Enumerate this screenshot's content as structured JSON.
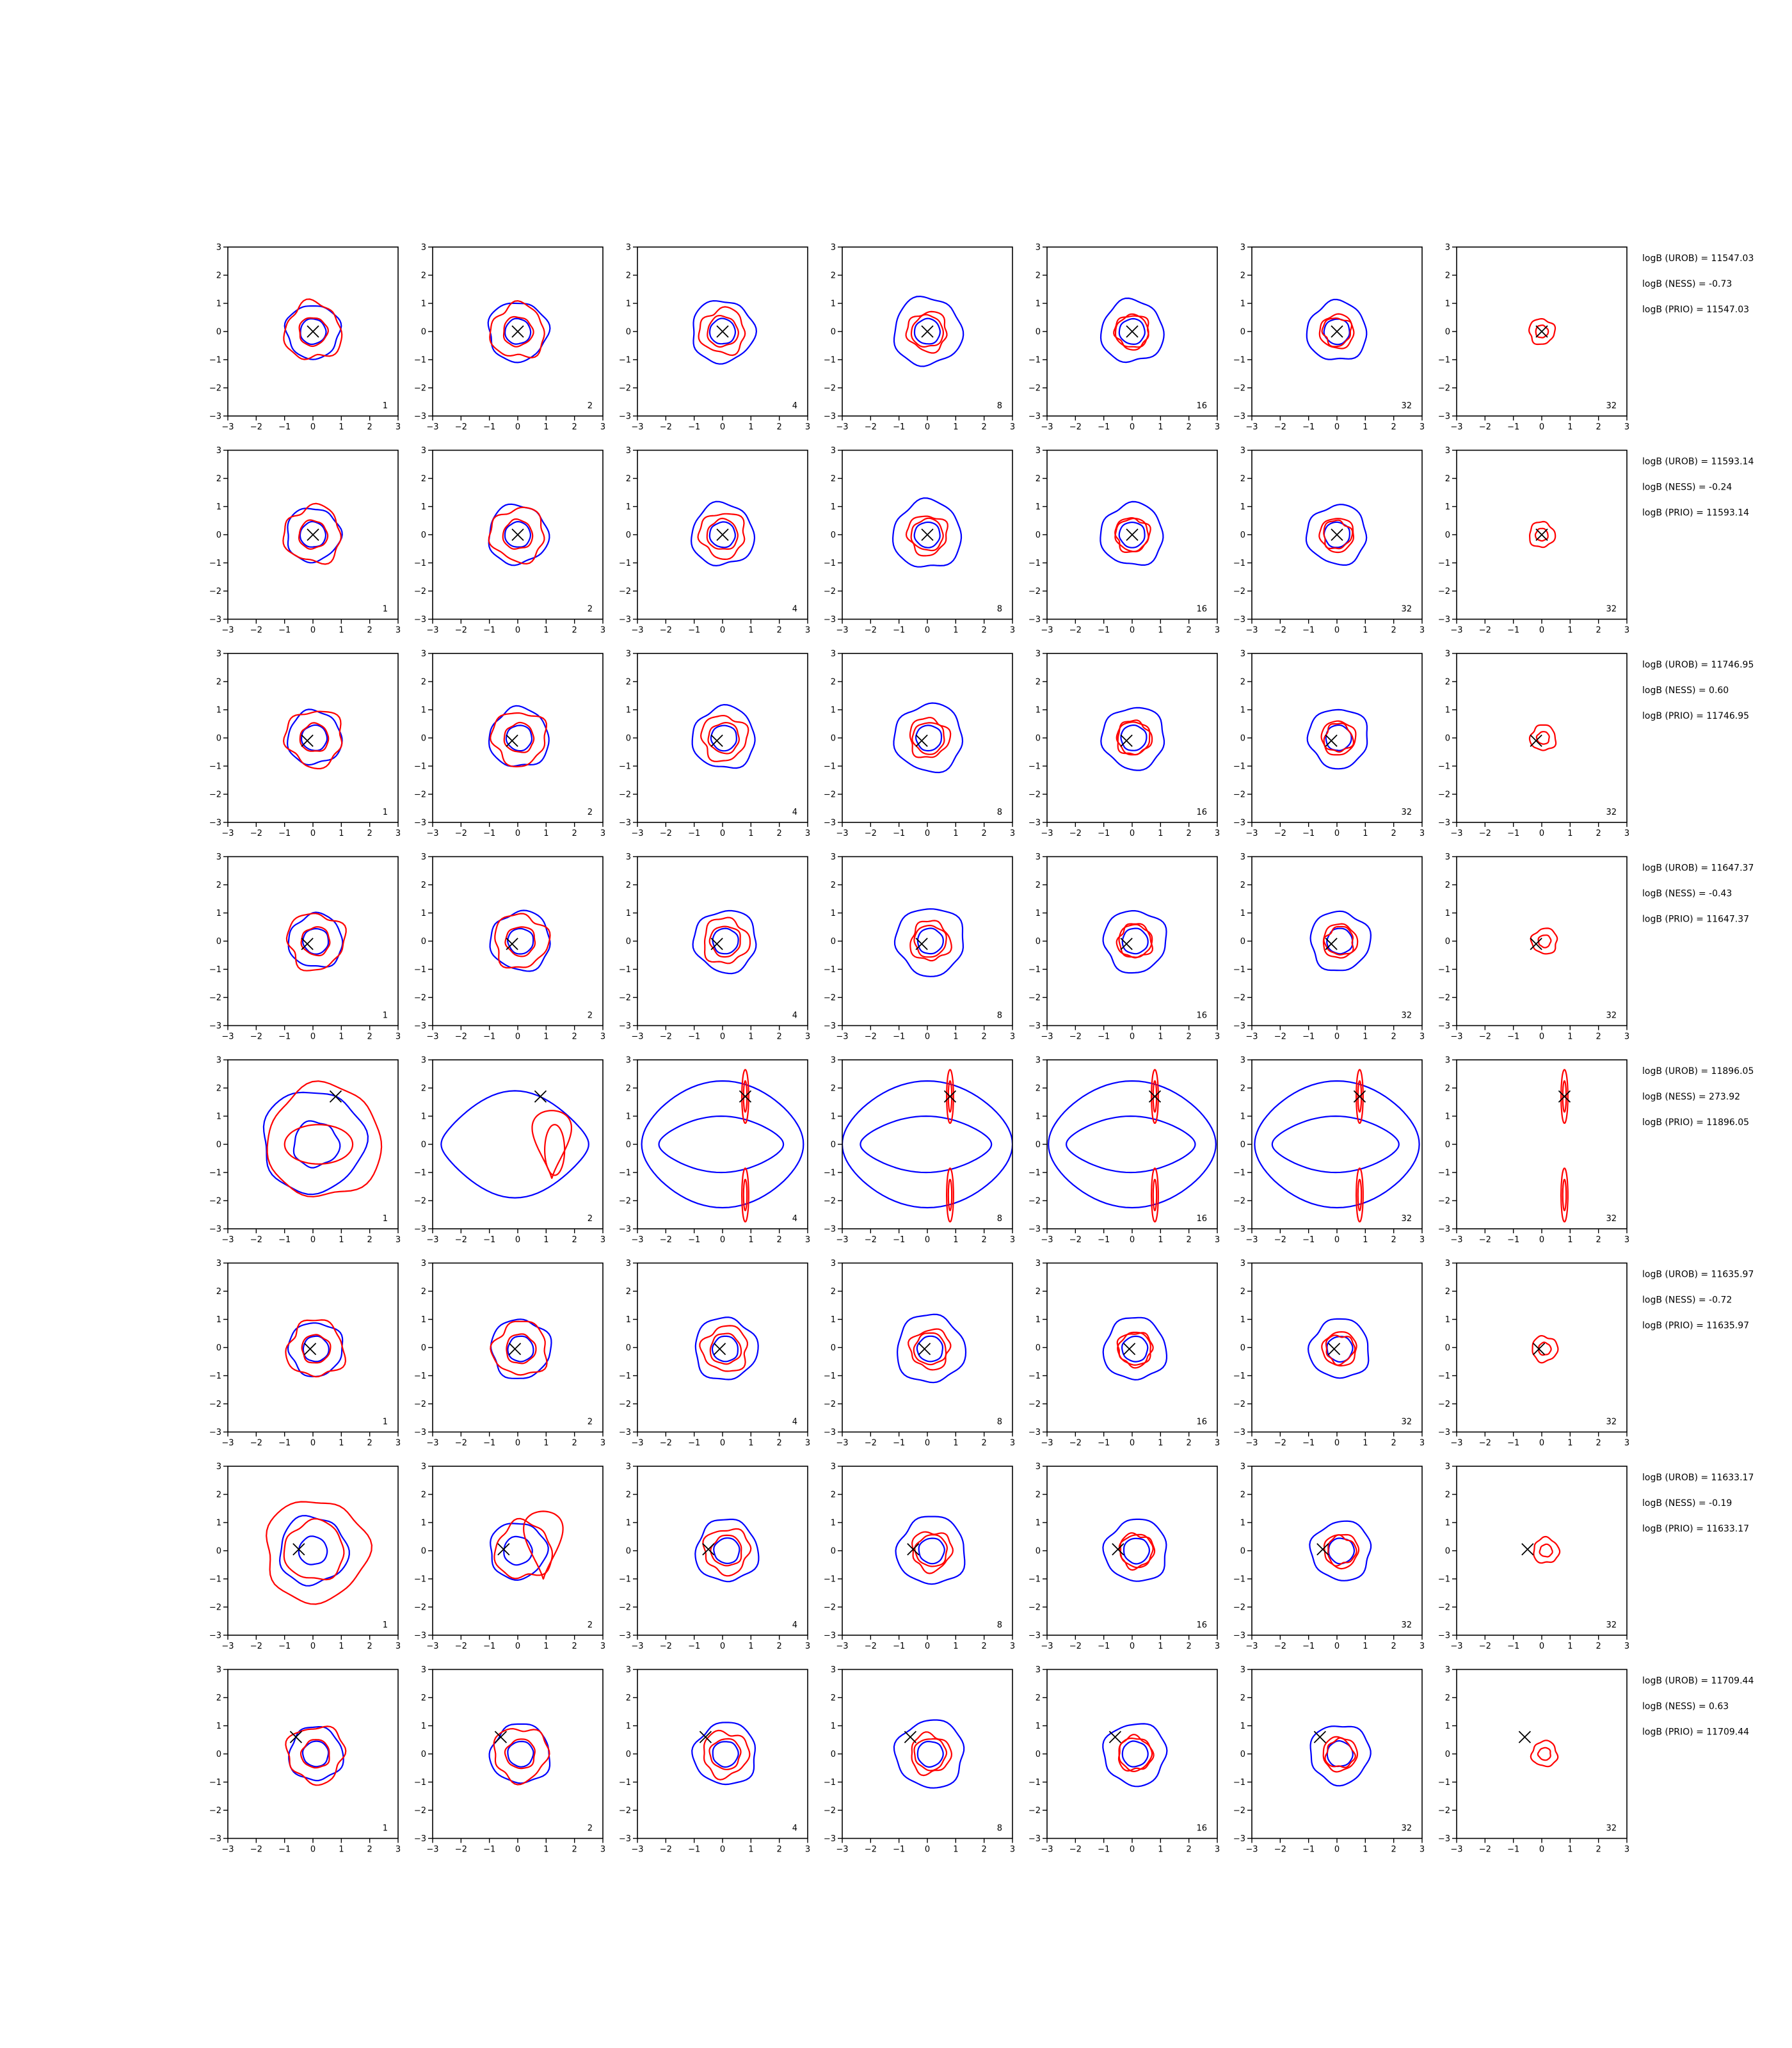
{
  "figure": {
    "colors": {
      "blue": "#0000ff",
      "red": "#ff0000",
      "axes": "#000000",
      "marker": "#000000"
    }
  },
  "chart_data": {
    "type": "contour",
    "layout": "8 rows x 7 columns grid of contour subplots; blue and red density contours with a black x marker",
    "xlim": [
      -3,
      3
    ],
    "ylim": [
      -3,
      3
    ],
    "xticks": [
      -3,
      -2,
      -1,
      0,
      1,
      2,
      3
    ],
    "yticks": [
      -3,
      -2,
      -1,
      0,
      1,
      2,
      3
    ],
    "tick_labels": [
      "−3",
      "−2",
      "−1",
      "0",
      "1",
      "2",
      "3"
    ],
    "panel_labels": [
      "1",
      "2",
      "4",
      "8",
      "16",
      "32",
      "32"
    ],
    "rows": [
      {
        "marker": [
          0.0,
          0.0
        ],
        "annotations": [
          "logB (UROB) = 11547.03",
          "logB (NESS) = -0.73",
          "logB (PRIO) = 11547.03"
        ]
      },
      {
        "marker": [
          0.0,
          0.0
        ],
        "annotations": [
          "logB (UROB) = 11593.14",
          "logB (NESS) = -0.24",
          "logB (PRIO) = 11593.14"
        ]
      },
      {
        "marker": [
          -0.2,
          -0.1
        ],
        "annotations": [
          "logB (UROB) = 11746.95",
          "logB (NESS) = 0.60",
          "logB (PRIO) = 11746.95"
        ]
      },
      {
        "marker": [
          -0.2,
          -0.1
        ],
        "annotations": [
          "logB (UROB) = 11647.37",
          "logB (NESS) = -0.43",
          "logB (PRIO) = 11647.37"
        ]
      },
      {
        "marker": [
          0.8,
          1.7
        ],
        "annotations": [
          "logB (UROB) = 11896.05",
          "logB (NESS) = 273.92",
          "logB (PRIO) = 11896.05"
        ]
      },
      {
        "marker": [
          -0.1,
          -0.05
        ],
        "annotations": [
          "logB (UROB) = 11635.97",
          "logB (NESS) = -0.72",
          "logB (PRIO) = 11635.97"
        ]
      },
      {
        "marker": [
          -0.5,
          0.05
        ],
        "annotations": [
          "logB (UROB) = 11633.17",
          "logB (NESS) = -0.19",
          "logB (PRIO) = 11633.17"
        ]
      },
      {
        "marker": [
          -0.6,
          0.6
        ],
        "annotations": [
          "logB (UROB) = 11709.44",
          "logB (NESS) = 0.63",
          "logB (PRIO) = 11709.44"
        ]
      }
    ]
  }
}
